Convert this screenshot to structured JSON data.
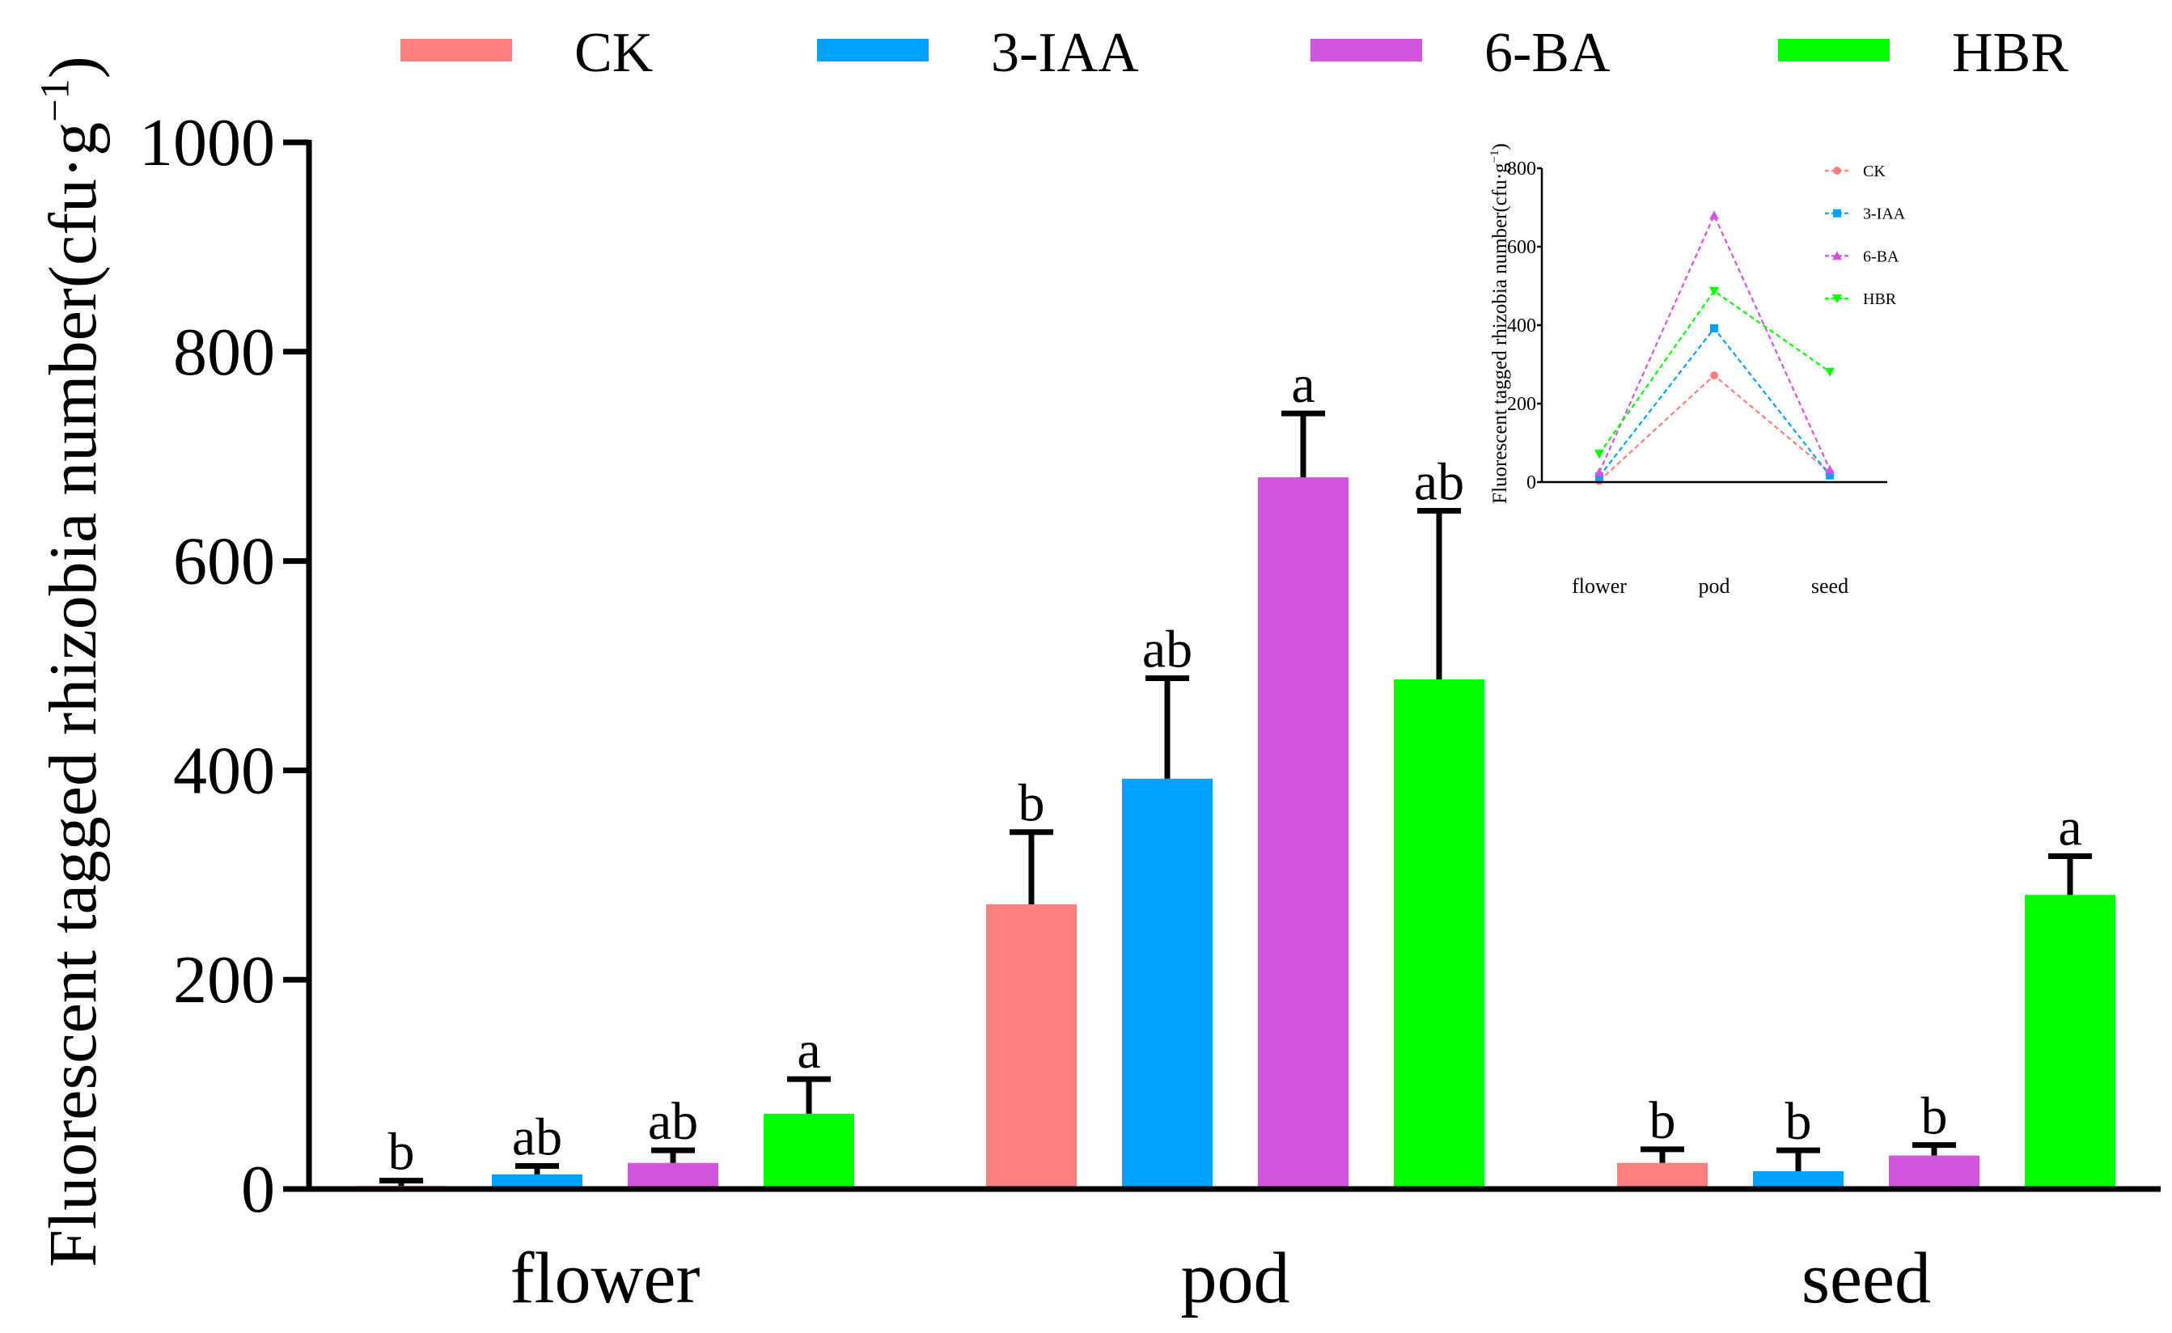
{
  "chart_data": [
    {
      "type": "bar",
      "ylabel": "Fluorescent tagged rhizobia number(cfu·g",
      "ylabel_sup": "−1",
      "ylabel_close": ")",
      "ylim": [
        0,
        1000
      ],
      "yticks": [
        0,
        200,
        400,
        600,
        800,
        1000
      ],
      "categories": [
        "flower",
        "pod",
        "seed"
      ],
      "legend_position": "top",
      "series": [
        {
          "name": "CK",
          "color": "#ff7f7f",
          "values": [
            3,
            272,
            25
          ],
          "errors": [
            5,
            69,
            13
          ],
          "letters": [
            "b",
            "b",
            "b"
          ]
        },
        {
          "name": "3-IAA",
          "color": "#00a2ff",
          "values": [
            14,
            392,
            17
          ],
          "errors": [
            8,
            96,
            20
          ],
          "letters": [
            "ab",
            "ab",
            "b"
          ]
        },
        {
          "name": "6-BA",
          "color": "#d355dd",
          "values": [
            25,
            680,
            32
          ],
          "errors": [
            12,
            61,
            10
          ],
          "letters": [
            "ab",
            "a",
            "b"
          ]
        },
        {
          "name": "HBR",
          "color": "#00ff00",
          "values": [
            72,
            487,
            281
          ],
          "errors": [
            33,
            161,
            37
          ],
          "letters": [
            "a",
            "ab",
            "a"
          ]
        }
      ]
    },
    {
      "type": "line",
      "inset": true,
      "ylabel": "Fluorescent tagged rhizobia number(cfu·g",
      "ylabel_sup": "−1",
      "ylabel_close": ")",
      "ylim": [
        0,
        800
      ],
      "yticks": [
        0,
        200,
        400,
        600,
        800
      ],
      "categories": [
        "flower",
        "pod",
        "seed"
      ],
      "legend_position": "top-right",
      "series": [
        {
          "name": "CK",
          "color": "#ff7f7f",
          "marker": "circle",
          "values": [
            3,
            272,
            25
          ]
        },
        {
          "name": "3-IAA",
          "color": "#00a2ff",
          "marker": "square",
          "values": [
            14,
            392,
            17
          ]
        },
        {
          "name": "6-BA",
          "color": "#d355dd",
          "marker": "triangle-up",
          "values": [
            25,
            680,
            32
          ]
        },
        {
          "name": "HBR",
          "color": "#00ff00",
          "marker": "triangle-down",
          "values": [
            72,
            487,
            281
          ]
        }
      ]
    }
  ]
}
